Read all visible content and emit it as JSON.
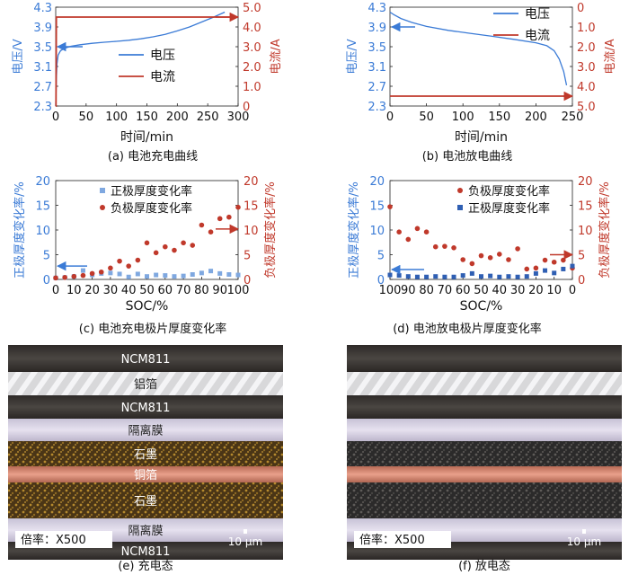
{
  "colors": {
    "blue": "#3b7bd6",
    "red": "#c0392b"
  },
  "chart_data": [
    {
      "id": "a",
      "type": "line",
      "caption": "(a) 电池充电曲线",
      "xlabel": "时间/min",
      "ylabel_left": "电压/V",
      "ylabel_right": "电流/A",
      "xlim": [
        0,
        300
      ],
      "xticks": [
        0,
        50,
        100,
        150,
        200,
        250,
        300
      ],
      "ylim_left": [
        2.3,
        4.3
      ],
      "yticks_left": [
        "4.3",
        "3.9",
        "3.5",
        "3.1",
        "2.7",
        "2.3"
      ],
      "ylim_right": [
        0,
        5
      ],
      "yticks_right": [
        "5.0",
        "4.0",
        "3.0",
        "2.0",
        "1.0",
        "0"
      ],
      "legend": [
        "电压",
        "电流"
      ],
      "series": [
        {
          "name": "电压",
          "axis": "left",
          "x": [
            0,
            1,
            2,
            4,
            8,
            15,
            25,
            40,
            60,
            80,
            100,
            120,
            140,
            160,
            180,
            200,
            220,
            240,
            260,
            278
          ],
          "y": [
            2.3,
            2.85,
            3.15,
            3.33,
            3.42,
            3.47,
            3.51,
            3.54,
            3.57,
            3.59,
            3.61,
            3.63,
            3.66,
            3.7,
            3.75,
            3.82,
            3.9,
            4.0,
            4.1,
            4.2
          ]
        },
        {
          "name": "电流",
          "axis": "right",
          "x": [
            0,
            0.5,
            1,
            300
          ],
          "y": [
            0,
            0,
            4.5,
            4.5
          ]
        }
      ]
    },
    {
      "id": "b",
      "type": "line",
      "caption": "(b) 电池放电曲线",
      "xlabel": "时间/min",
      "ylabel_left": "电压/V",
      "ylabel_right": "电流/A",
      "xlim": [
        0,
        250
      ],
      "xticks": [
        0,
        50,
        100,
        150,
        200,
        250
      ],
      "ylim_left": [
        2.3,
        4.3
      ],
      "yticks_left": [
        "4.3",
        "3.9",
        "3.5",
        "3.1",
        "2.7",
        "2.3"
      ],
      "ylim_right": [
        0,
        5
      ],
      "yticks_right": [
        "0",
        "1.0",
        "2.0",
        "3.0",
        "4.0",
        "5.0"
      ],
      "legend": [
        "电压",
        "电流"
      ],
      "series": [
        {
          "name": "电压",
          "axis": "left",
          "x": [
            0,
            5,
            15,
            30,
            50,
            80,
            110,
            140,
            170,
            200,
            215,
            225,
            232,
            238,
            242
          ],
          "y": [
            4.2,
            4.15,
            4.07,
            3.99,
            3.91,
            3.83,
            3.77,
            3.71,
            3.65,
            3.58,
            3.52,
            3.42,
            3.25,
            3.0,
            2.72
          ]
        },
        {
          "name": "电流",
          "axis": "right",
          "x": [
            0,
            242
          ],
          "y": [
            4.5,
            4.5
          ]
        }
      ]
    },
    {
      "id": "c",
      "type": "scatter",
      "caption": "(c) 电池充电极片厚度变化率",
      "xlabel": "SOC/%",
      "ylabel_left": "正极厚度变化率/%",
      "ylabel_right": "负极厚度变化率/%",
      "xlim": [
        0,
        100
      ],
      "xticks": [
        0,
        10,
        20,
        30,
        40,
        50,
        60,
        70,
        80,
        90,
        100
      ],
      "ylim": [
        0,
        20
      ],
      "yticks": [
        0,
        5,
        10,
        15,
        20
      ],
      "legend": [
        "正极厚度变化率",
        "负极厚度变化率"
      ],
      "series": [
        {
          "name": "正极厚度变化率",
          "axis": "left",
          "x": [
            0,
            5,
            10,
            15,
            20,
            25,
            30,
            35,
            40,
            45,
            50,
            55,
            60,
            65,
            70,
            75,
            80,
            85,
            90,
            95,
            100
          ],
          "y": [
            0.3,
            0.4,
            0.6,
            1.8,
            0.9,
            1.2,
            1.3,
            1.1,
            0.5,
            1.1,
            0.6,
            0.9,
            0.8,
            0.6,
            0.7,
            1.0,
            1.3,
            1.7,
            1.2,
            1.0,
            0.9
          ]
        },
        {
          "name": "负极厚度变化率",
          "axis": "right",
          "x": [
            0,
            5,
            10,
            15,
            20,
            25,
            30,
            35,
            40,
            45,
            50,
            55,
            60,
            65,
            70,
            75,
            80,
            85,
            90,
            95,
            100
          ],
          "y": [
            0.3,
            0.4,
            0.6,
            0.8,
            1.2,
            1.5,
            2.3,
            3.7,
            2.7,
            3.9,
            7.4,
            5.4,
            6.6,
            5.9,
            7.4,
            6.9,
            11.0,
            9.6,
            12.3,
            12.6,
            14.6
          ]
        }
      ]
    },
    {
      "id": "d",
      "type": "scatter",
      "caption": "(d) 电池放电极片厚度变化率",
      "xlabel": "SOC/%",
      "ylabel_left": "正极厚度变化率/%",
      "ylabel_right": "负极厚度变化率/%",
      "xlim": [
        100,
        0
      ],
      "xticks": [
        100,
        90,
        80,
        70,
        60,
        50,
        40,
        30,
        20,
        10,
        0
      ],
      "ylim": [
        0,
        20
      ],
      "yticks": [
        0,
        5,
        10,
        15,
        20
      ],
      "legend": [
        "负极厚度变化率",
        "正极厚度变化率"
      ],
      "series": [
        {
          "name": "负极厚度变化率",
          "axis": "right",
          "x": [
            100,
            95,
            90,
            85,
            80,
            75,
            70,
            65,
            60,
            55,
            50,
            45,
            40,
            35,
            30,
            25,
            20,
            15,
            10,
            5,
            0
          ],
          "y": [
            14.7,
            9.6,
            8.1,
            10.3,
            9.6,
            6.6,
            6.7,
            6.4,
            4.0,
            3.2,
            4.8,
            4.4,
            5.1,
            4.0,
            6.2,
            2.1,
            2.3,
            3.9,
            3.5,
            3.9,
            2.3
          ]
        },
        {
          "name": "正极厚度变化率",
          "axis": "left",
          "x": [
            100,
            95,
            90,
            85,
            80,
            75,
            70,
            65,
            60,
            55,
            50,
            45,
            40,
            35,
            30,
            25,
            20,
            15,
            10,
            5,
            0
          ],
          "y": [
            0.9,
            0.8,
            0.6,
            0.5,
            0.5,
            0.6,
            0.5,
            0.5,
            0.8,
            1.2,
            0.6,
            0.7,
            0.5,
            0.6,
            0.5,
            0.6,
            1.2,
            1.8,
            1.3,
            2.1,
            2.7
          ]
        }
      ]
    }
  ],
  "micrographs": [
    {
      "id": "e",
      "caption": "(e) 充电态",
      "labels": [
        "NCM811",
        "铝箔",
        "NCM811",
        "隔离膜",
        "石墨",
        "铜箔",
        "石墨",
        "隔离膜",
        "NCM811"
      ],
      "magnification": "倍率：X500",
      "scale": "10 μm"
    },
    {
      "id": "f",
      "caption": "(f) 放电态",
      "magnification": "倍率：X500",
      "scale": "10 μm"
    }
  ]
}
